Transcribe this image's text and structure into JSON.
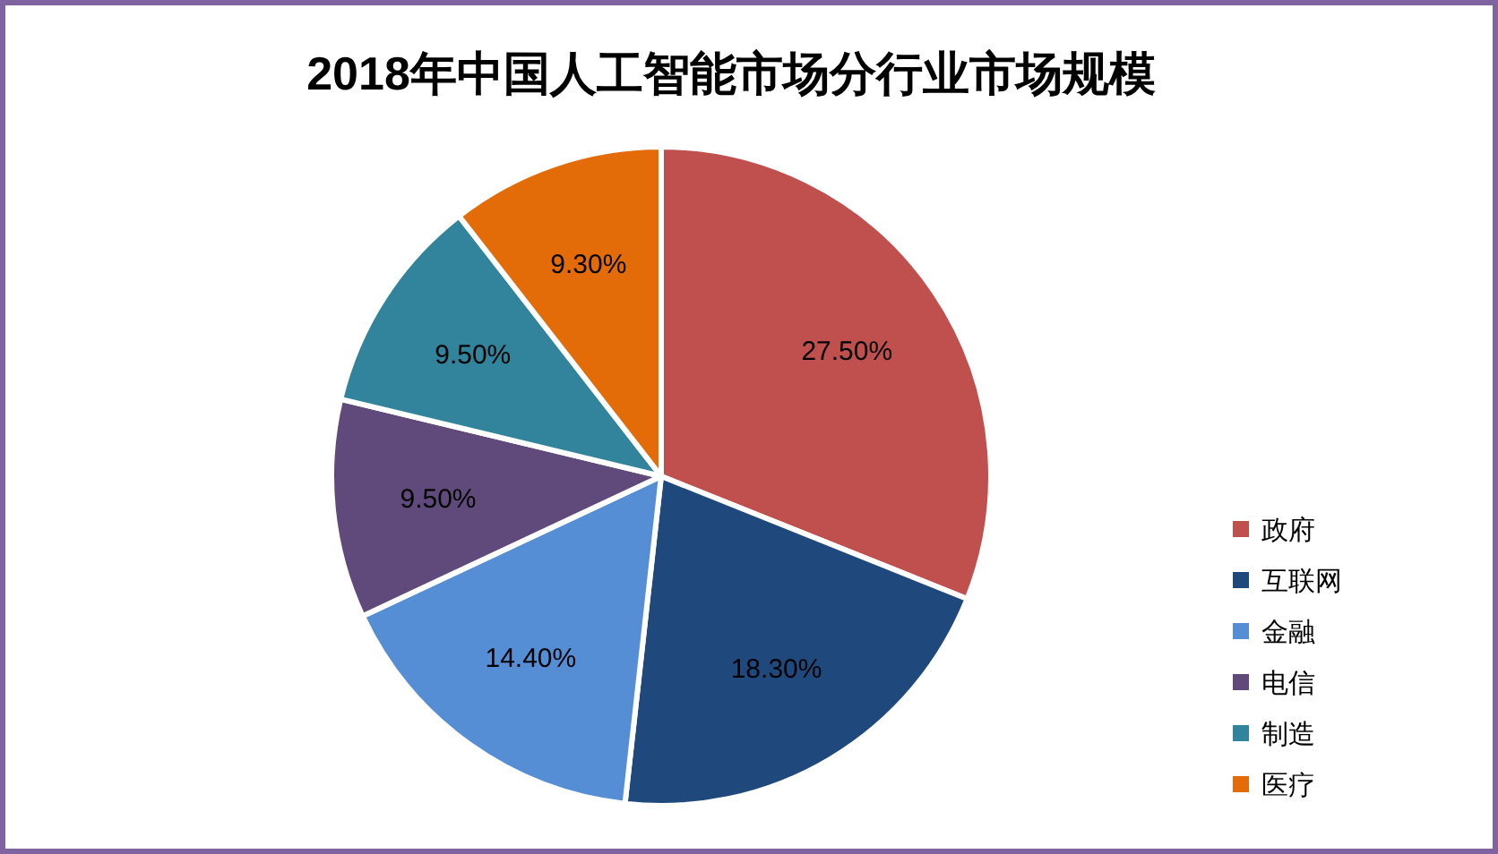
{
  "chart_data": {
    "type": "pie",
    "title": "2018年中国人工智能市场分行业市场规模",
    "categories": [
      "政府",
      "互联网",
      "金融",
      "电信",
      "制造",
      "医疗"
    ],
    "values": [
      27.5,
      18.3,
      14.4,
      9.5,
      9.5,
      9.3
    ],
    "value_labels": [
      "27.50%",
      "18.30%",
      "14.40%",
      "9.50%",
      "9.50%",
      "9.30%"
    ],
    "colors": [
      "#c0504d",
      "#1f497d",
      "#558ed5",
      "#604a7b",
      "#31849b",
      "#e36c09"
    ],
    "legend": "right"
  }
}
